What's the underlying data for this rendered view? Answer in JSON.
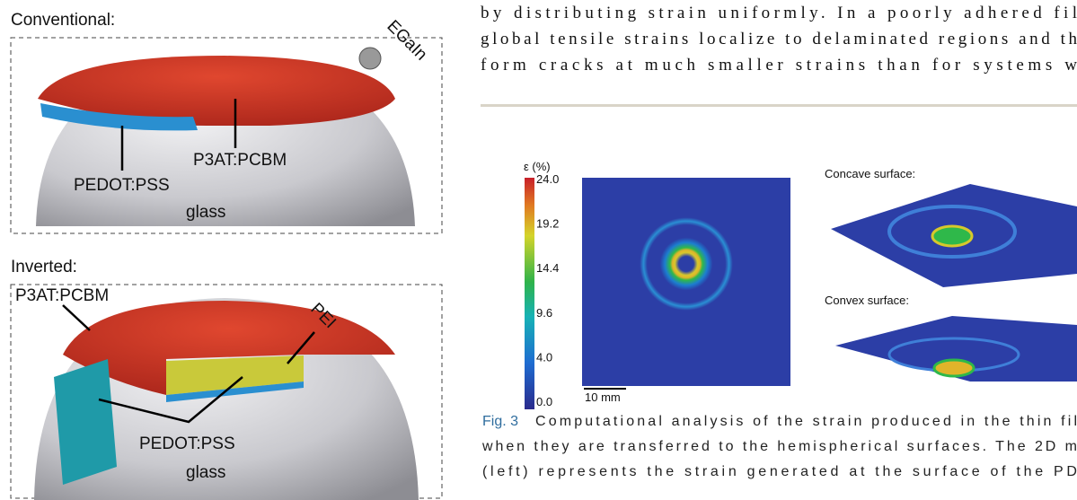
{
  "left_figure": {
    "conventional": {
      "heading": "Conventional:",
      "labels": [
        "EGaIn",
        "P3AT:PCBM",
        "PEDOT:PSS",
        "glass"
      ]
    },
    "inverted": {
      "heading": "Inverted:",
      "labels": [
        "P3AT:PCBM",
        "PEI",
        "PEDOT:PSS",
        "glass"
      ]
    }
  },
  "body_text": {
    "lines": [
      "by distributing strain uniformly. In a poorly adhered fil",
      "global tensile strains localize to delaminated regions and th",
      "form cracks at much smaller strains than for systems w"
    ]
  },
  "figure": {
    "colorbar": {
      "label": "ε (%)",
      "ticks": [
        "24.0",
        "19.2",
        "14.4",
        "9.6",
        "4.0",
        "0.0"
      ]
    },
    "scale_bar": "10 mm",
    "panels": [
      "Concave surface:",
      "Convex surface:"
    ],
    "caption": {
      "label": "Fig. 3",
      "lines": [
        "Computational analysis of the strain produced in the thin fil",
        "when they are transferred to the hemispherical surfaces. The 2D m",
        "(left) represents the strain generated at the surface of the PD"
      ]
    }
  }
}
